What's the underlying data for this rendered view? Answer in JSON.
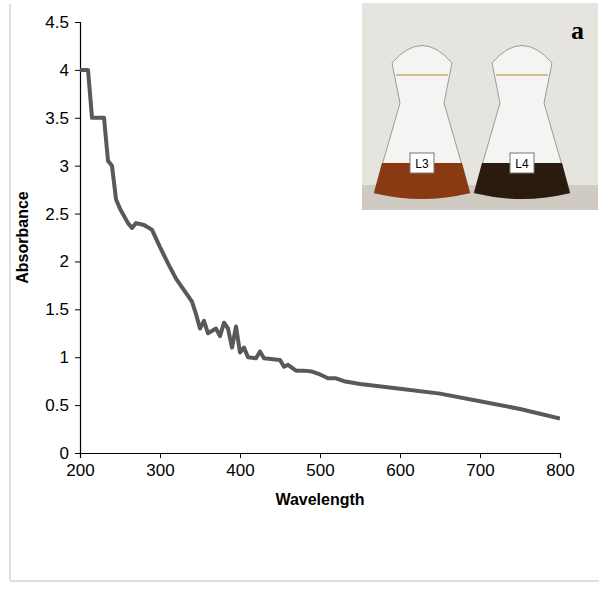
{
  "chart_data": {
    "type": "line",
    "x_label": "Wavelength",
    "y_label": "Absorbance",
    "panel_label": "a",
    "inset_labels": [
      "L3",
      "L4"
    ],
    "x": [
      200,
      210,
      215,
      225,
      230,
      235,
      240,
      245,
      250,
      260,
      265,
      270,
      280,
      290,
      300,
      310,
      320,
      330,
      340,
      345,
      350,
      355,
      360,
      370,
      375,
      380,
      385,
      390,
      395,
      400,
      405,
      410,
      420,
      425,
      430,
      450,
      455,
      460,
      470,
      480,
      490,
      500,
      510,
      520,
      530,
      550,
      600,
      650,
      700,
      750,
      800
    ],
    "series": [
      {
        "color": "#595959",
        "line_style": "solid",
        "values": [
          4.0,
          4.0,
          3.5,
          3.5,
          3.5,
          3.05,
          3.0,
          2.65,
          2.55,
          2.4,
          2.35,
          2.4,
          2.38,
          2.33,
          2.15,
          1.98,
          1.82,
          1.7,
          1.58,
          1.45,
          1.3,
          1.38,
          1.25,
          1.3,
          1.22,
          1.36,
          1.3,
          1.1,
          1.32,
          1.05,
          1.1,
          1.0,
          0.99,
          1.06,
          0.99,
          0.97,
          0.9,
          0.92,
          0.86,
          0.86,
          0.85,
          0.82,
          0.78,
          0.78,
          0.75,
          0.72,
          0.67,
          0.62,
          0.54,
          0.46,
          0.36
        ]
      }
    ],
    "xlim": [
      200,
      800
    ],
    "xticks": [
      200,
      300,
      400,
      500,
      600,
      700,
      800
    ],
    "ylim": [
      0,
      4.5
    ],
    "yticks": [
      0,
      0.5,
      1,
      1.5,
      2,
      2.5,
      3,
      3.5,
      4,
      4.5
    ],
    "grid": false
  }
}
